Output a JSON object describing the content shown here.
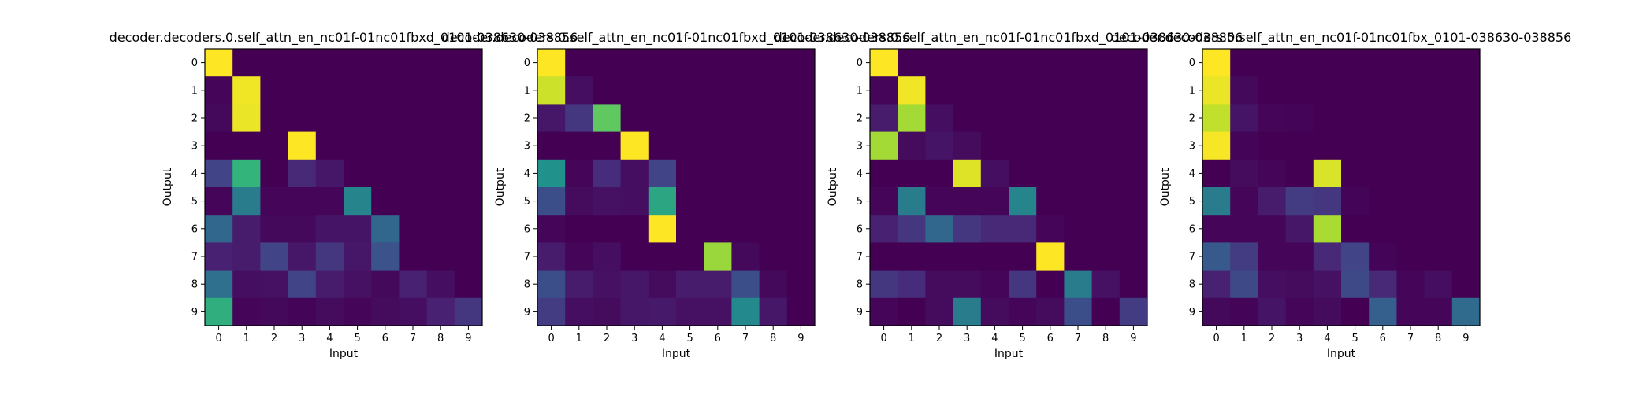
{
  "chart_data": [
    {
      "type": "heatmap",
      "title": "decoder.decoders.0.self_attn_en_nc01f-01nc01fbxd_0101-038630-038856",
      "xlabel": "Input",
      "ylabel": "Output",
      "x_ticks": [
        "0",
        "1",
        "2",
        "3",
        "4",
        "5",
        "6",
        "7",
        "8",
        "9"
      ],
      "y_ticks": [
        "0",
        "1",
        "2",
        "3",
        "4",
        "5",
        "6",
        "7",
        "8",
        "9"
      ],
      "colormap": "viridis",
      "value_range": [
        0,
        1
      ],
      "values": [
        [
          1.0,
          0.0,
          0.0,
          0.0,
          0.0,
          0.0,
          0.0,
          0.0,
          0.0,
          0.0
        ],
        [
          0.02,
          0.98,
          0.0,
          0.0,
          0.0,
          0.0,
          0.0,
          0.0,
          0.0,
          0.0
        ],
        [
          0.03,
          0.97,
          0.0,
          0.0,
          0.0,
          0.0,
          0.0,
          0.0,
          0.0,
          0.0
        ],
        [
          0.0,
          0.0,
          0.0,
          1.0,
          0.0,
          0.0,
          0.0,
          0.0,
          0.0,
          0.0
        ],
        [
          0.25,
          0.62,
          0.0,
          0.15,
          0.08,
          0.0,
          0.0,
          0.0,
          0.0,
          0.0
        ],
        [
          0.02,
          0.45,
          0.02,
          0.02,
          0.02,
          0.47,
          0.0,
          0.0,
          0.0,
          0.0
        ],
        [
          0.4,
          0.1,
          0.03,
          0.03,
          0.07,
          0.07,
          0.4,
          0.0,
          0.0,
          0.0
        ],
        [
          0.12,
          0.1,
          0.25,
          0.08,
          0.2,
          0.08,
          0.32,
          0.0,
          0.0,
          0.0
        ],
        [
          0.42,
          0.05,
          0.06,
          0.25,
          0.1,
          0.06,
          0.03,
          0.12,
          0.05,
          0.0
        ],
        [
          0.6,
          0.02,
          0.03,
          0.01,
          0.04,
          0.02,
          0.04,
          0.05,
          0.12,
          0.2
        ]
      ]
    },
    {
      "type": "heatmap",
      "title": "decoder.decoders.0.self_attn_en_nc01f-01nc01fbxd_0101-038630-038856",
      "xlabel": "Input",
      "ylabel": "Output",
      "x_ticks": [
        "0",
        "1",
        "2",
        "3",
        "4",
        "5",
        "6",
        "7",
        "8",
        "9"
      ],
      "y_ticks": [
        "0",
        "1",
        "2",
        "3",
        "4",
        "5",
        "6",
        "7",
        "8",
        "9"
      ],
      "colormap": "viridis",
      "value_range": [
        0,
        1
      ],
      "values": [
        [
          1.0,
          0.0,
          0.0,
          0.0,
          0.0,
          0.0,
          0.0,
          0.0,
          0.0,
          0.0
        ],
        [
          0.92,
          0.05,
          0.0,
          0.0,
          0.0,
          0.0,
          0.0,
          0.0,
          0.0,
          0.0
        ],
        [
          0.08,
          0.2,
          0.72,
          0.0,
          0.0,
          0.0,
          0.0,
          0.0,
          0.0,
          0.0
        ],
        [
          0.0,
          0.0,
          0.0,
          1.0,
          0.0,
          0.0,
          0.0,
          0.0,
          0.0,
          0.0
        ],
        [
          0.5,
          0.02,
          0.16,
          0.05,
          0.25,
          0.0,
          0.0,
          0.0,
          0.0,
          0.0
        ],
        [
          0.3,
          0.04,
          0.06,
          0.05,
          0.57,
          0.0,
          0.0,
          0.0,
          0.0,
          0.0
        ],
        [
          0.02,
          0.0,
          0.0,
          0.0,
          1.0,
          0.0,
          0.0,
          0.0,
          0.0,
          0.0
        ],
        [
          0.1,
          0.02,
          0.05,
          0.0,
          0.0,
          0.0,
          0.83,
          0.03,
          0.0,
          0.0
        ],
        [
          0.3,
          0.1,
          0.06,
          0.08,
          0.04,
          0.1,
          0.1,
          0.3,
          0.03,
          0.0
        ],
        [
          0.22,
          0.05,
          0.04,
          0.08,
          0.09,
          0.06,
          0.06,
          0.48,
          0.08,
          0.0
        ]
      ]
    },
    {
      "type": "heatmap",
      "title": "decoder.decoders.0.self_attn_en_nc01f-01nc01fbxd_0101-038630-038856",
      "xlabel": "Input",
      "ylabel": "Output",
      "x_ticks": [
        "0",
        "1",
        "2",
        "3",
        "4",
        "5",
        "6",
        "7",
        "8",
        "9"
      ],
      "y_ticks": [
        "0",
        "1",
        "2",
        "3",
        "4",
        "5",
        "6",
        "7",
        "8",
        "9"
      ],
      "colormap": "viridis",
      "value_range": [
        0,
        1
      ],
      "values": [
        [
          1.0,
          0.0,
          0.0,
          0.0,
          0.0,
          0.0,
          0.0,
          0.0,
          0.0,
          0.0
        ],
        [
          0.02,
          0.98,
          0.0,
          0.0,
          0.0,
          0.0,
          0.0,
          0.0,
          0.0,
          0.0
        ],
        [
          0.1,
          0.85,
          0.05,
          0.0,
          0.0,
          0.0,
          0.0,
          0.0,
          0.0,
          0.0
        ],
        [
          0.85,
          0.04,
          0.07,
          0.04,
          0.0,
          0.0,
          0.0,
          0.0,
          0.0,
          0.0
        ],
        [
          0.0,
          0.0,
          0.0,
          0.95,
          0.05,
          0.0,
          0.0,
          0.0,
          0.0,
          0.0
        ],
        [
          0.02,
          0.45,
          0.02,
          0.02,
          0.02,
          0.47,
          0.0,
          0.0,
          0.0,
          0.0
        ],
        [
          0.12,
          0.2,
          0.4,
          0.2,
          0.15,
          0.15,
          0.02,
          0.0,
          0.0,
          0.0
        ],
        [
          0.0,
          0.0,
          0.0,
          0.0,
          0.0,
          0.0,
          1.0,
          0.0,
          0.0,
          0.0
        ],
        [
          0.2,
          0.16,
          0.04,
          0.04,
          0.02,
          0.2,
          0.0,
          0.45,
          0.06,
          0.0
        ],
        [
          0.02,
          0.0,
          0.04,
          0.45,
          0.04,
          0.02,
          0.04,
          0.3,
          0.0,
          0.22
        ]
      ]
    },
    {
      "type": "heatmap",
      "title": "decoder.decoders.0.self_attn_en_nc01f-01nc01fbx_0101-038630-038856",
      "xlabel": "Input",
      "ylabel": "Output",
      "x_ticks": [
        "0",
        "1",
        "2",
        "3",
        "4",
        "5",
        "6",
        "7",
        "8",
        "9"
      ],
      "y_ticks": [
        "0",
        "1",
        "2",
        "3",
        "4",
        "5",
        "6",
        "7",
        "8",
        "9"
      ],
      "colormap": "viridis",
      "value_range": [
        0,
        1
      ],
      "values": [
        [
          1.0,
          0.0,
          0.0,
          0.0,
          0.0,
          0.0,
          0.0,
          0.0,
          0.0,
          0.0
        ],
        [
          0.97,
          0.03,
          0.0,
          0.0,
          0.0,
          0.0,
          0.0,
          0.0,
          0.0,
          0.0
        ],
        [
          0.9,
          0.07,
          0.02,
          0.01,
          0.0,
          0.0,
          0.0,
          0.0,
          0.0,
          0.0
        ],
        [
          0.99,
          0.01,
          0.0,
          0.0,
          0.0,
          0.0,
          0.0,
          0.0,
          0.0,
          0.0
        ],
        [
          0.0,
          0.04,
          0.02,
          0.0,
          0.94,
          0.0,
          0.0,
          0.0,
          0.0,
          0.0
        ],
        [
          0.45,
          0.02,
          0.1,
          0.22,
          0.2,
          0.01,
          0.0,
          0.0,
          0.0,
          0.0
        ],
        [
          0.02,
          0.02,
          0.02,
          0.08,
          0.86,
          0.0,
          0.0,
          0.0,
          0.0,
          0.0
        ],
        [
          0.35,
          0.22,
          0.02,
          0.02,
          0.15,
          0.25,
          0.01,
          0.0,
          0.0,
          0.0
        ],
        [
          0.12,
          0.28,
          0.05,
          0.04,
          0.06,
          0.28,
          0.15,
          0.02,
          0.05,
          0.0
        ],
        [
          0.03,
          0.01,
          0.07,
          0.02,
          0.04,
          0.0,
          0.38,
          0.02,
          0.02,
          0.41
        ]
      ]
    }
  ]
}
